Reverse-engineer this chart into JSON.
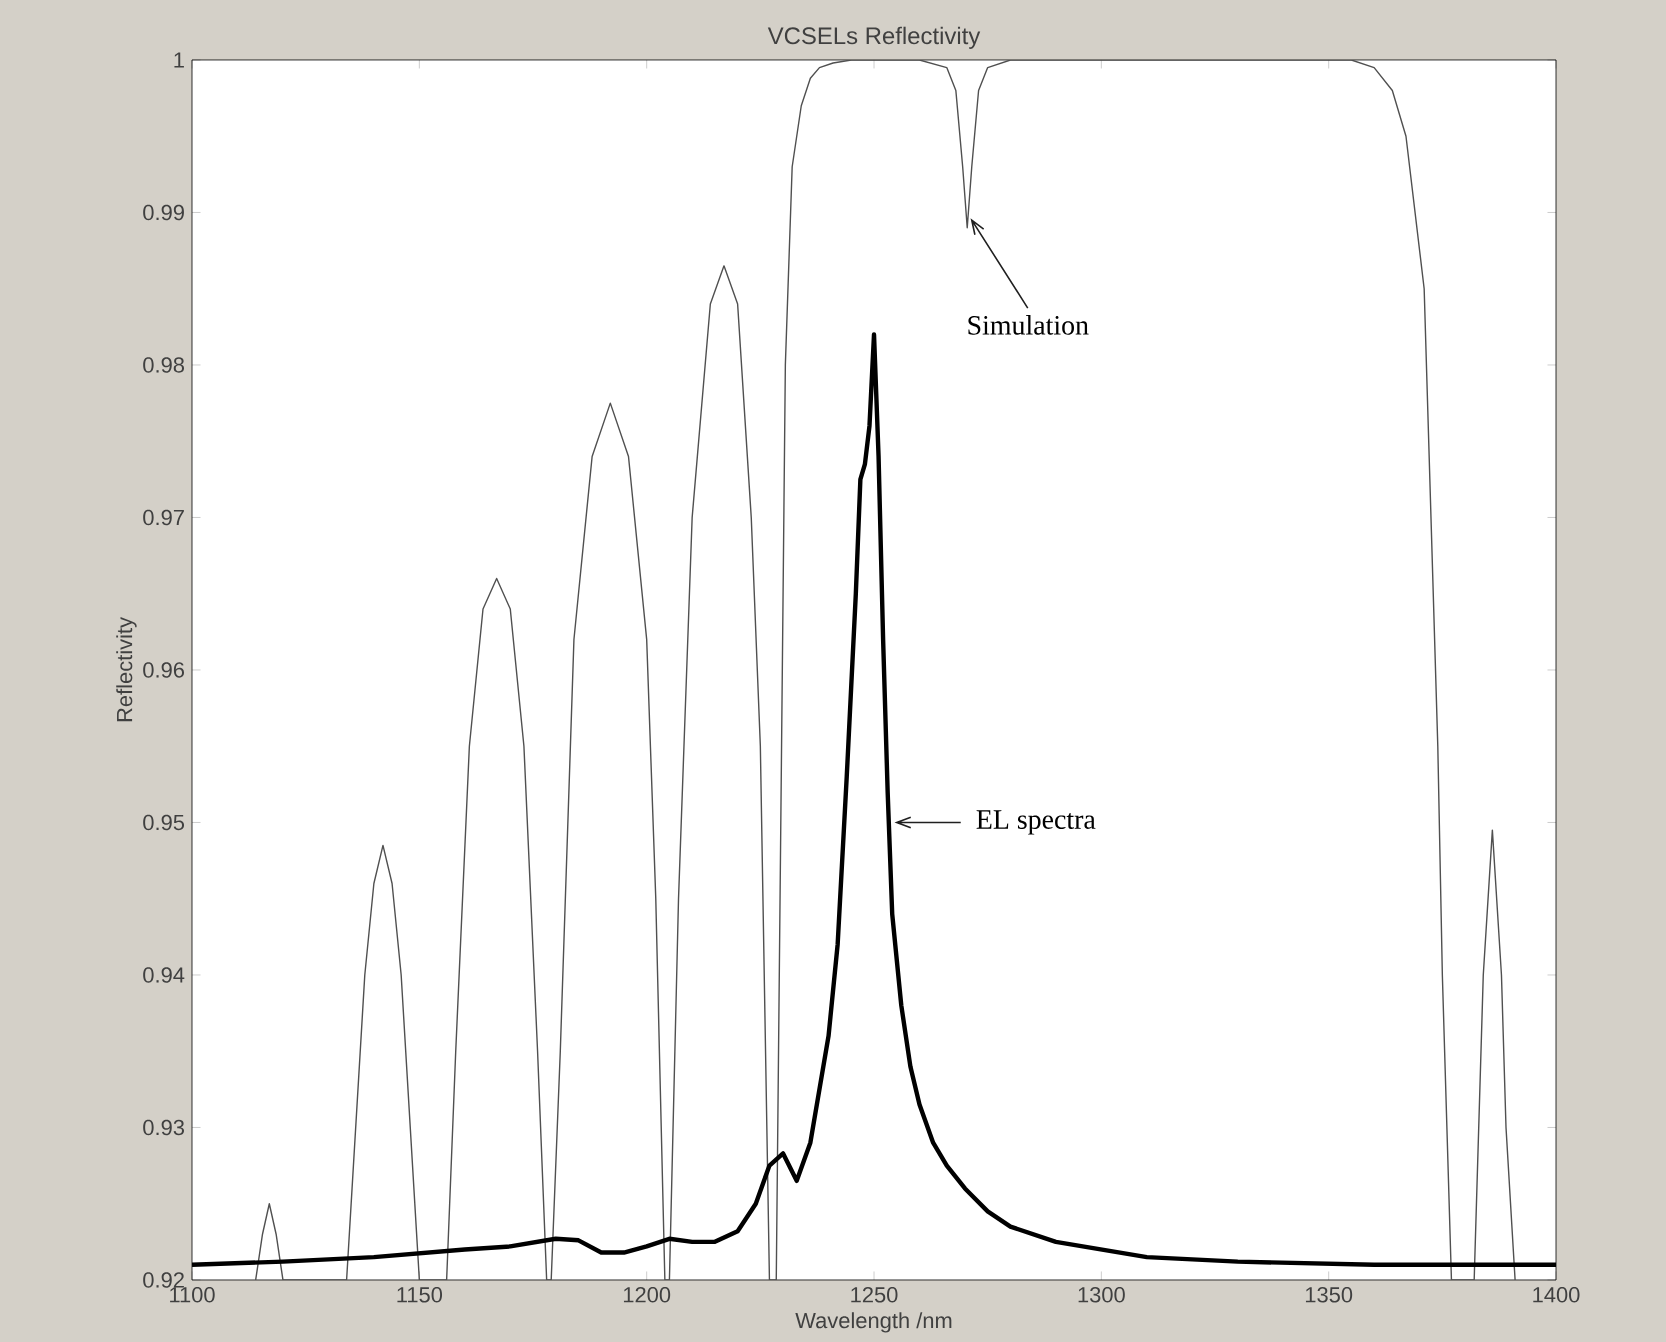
{
  "chart_data": {
    "type": "line",
    "title": "VCSELs Reflectivity",
    "xlabel": "Wavelength /nm",
    "ylabel": "Reflectivity",
    "xlim": [
      1100,
      1400
    ],
    "ylim": [
      0.92,
      1
    ],
    "xticks": [
      1100,
      1150,
      1200,
      1250,
      1300,
      1350,
      1400
    ],
    "yticks": [
      0.92,
      0.93,
      0.94,
      0.95,
      0.96,
      0.97,
      0.98,
      0.99,
      1
    ],
    "grid": false,
    "marker": "none",
    "line_style": "solid",
    "series": [
      {
        "color": "#505050",
        "x": [
          1114,
          1115.5,
          1117,
          1118.5,
          1120,
          1134,
          1136,
          1138,
          1140,
          1142,
          1144,
          1146,
          1148,
          1150,
          1156,
          1158,
          1161,
          1164,
          1167,
          1170,
          1173,
          1176,
          1178,
          1179,
          1181,
          1184,
          1188,
          1192,
          1196,
          1200,
          1202,
          1204,
          1205,
          1207,
          1210,
          1214,
          1217,
          1220,
          1223,
          1225,
          1227,
          1228.5,
          1229.5,
          1230.5,
          1232,
          1234,
          1236,
          1238,
          1241,
          1245,
          1260,
          1266,
          1268,
          1269.5,
          1270.5,
          1271.5,
          1273,
          1275,
          1280,
          1355,
          1360,
          1364,
          1367,
          1369,
          1371,
          1372,
          1373,
          1374,
          1375,
          1376,
          1377,
          1382,
          1383,
          1384,
          1386,
          1388,
          1389,
          1390,
          1391
        ],
        "values": [
          0.92,
          0.923,
          0.925,
          0.923,
          0.92,
          0.92,
          0.93,
          0.94,
          0.946,
          0.9485,
          0.946,
          0.94,
          0.93,
          0.92,
          0.92,
          0.935,
          0.955,
          0.964,
          0.966,
          0.964,
          0.955,
          0.935,
          0.92,
          0.92,
          0.935,
          0.962,
          0.974,
          0.9775,
          0.974,
          0.962,
          0.945,
          0.92,
          0.92,
          0.945,
          0.97,
          0.984,
          0.9865,
          0.984,
          0.97,
          0.955,
          0.92,
          0.92,
          0.95,
          0.98,
          0.993,
          0.997,
          0.9988,
          0.9995,
          0.9998,
          1,
          1,
          0.9995,
          0.998,
          0.993,
          0.989,
          0.993,
          0.998,
          0.9995,
          1,
          1,
          0.9995,
          0.998,
          0.995,
          0.99,
          0.985,
          0.975,
          0.965,
          0.955,
          0.94,
          0.93,
          0.92,
          0.92,
          0.93,
          0.94,
          0.9495,
          0.94,
          0.93,
          0.925,
          0.92
        ]
      },
      {
        "color": "#000000",
        "x": [
          1100,
          1120,
          1140,
          1160,
          1170,
          1180,
          1185,
          1190,
          1195,
          1200,
          1205,
          1210,
          1215,
          1220,
          1224,
          1227,
          1230,
          1233,
          1236,
          1240,
          1242,
          1244,
          1246,
          1247,
          1248,
          1249,
          1250,
          1251,
          1252,
          1253,
          1254,
          1256,
          1258,
          1260,
          1263,
          1266,
          1270,
          1275,
          1280,
          1290,
          1300,
          1310,
          1330,
          1360,
          1400
        ],
        "values": [
          0.921,
          0.9212,
          0.9215,
          0.922,
          0.9222,
          0.9227,
          0.9226,
          0.9218,
          0.9218,
          0.9222,
          0.9227,
          0.9225,
          0.9225,
          0.9232,
          0.925,
          0.9275,
          0.9283,
          0.9265,
          0.929,
          0.936,
          0.942,
          0.953,
          0.965,
          0.9725,
          0.9735,
          0.976,
          0.982,
          0.974,
          0.962,
          0.952,
          0.944,
          0.938,
          0.934,
          0.9315,
          0.929,
          0.9275,
          0.926,
          0.9245,
          0.9235,
          0.9225,
          0.922,
          0.9215,
          0.9212,
          0.921,
          0.921
        ]
      }
    ],
    "annotations": [
      {
        "text": "Simulation",
        "x": 1271.5,
        "y": 0.9895
      },
      {
        "text": "EL spectra",
        "x": 1255,
        "y": 0.95
      }
    ]
  }
}
